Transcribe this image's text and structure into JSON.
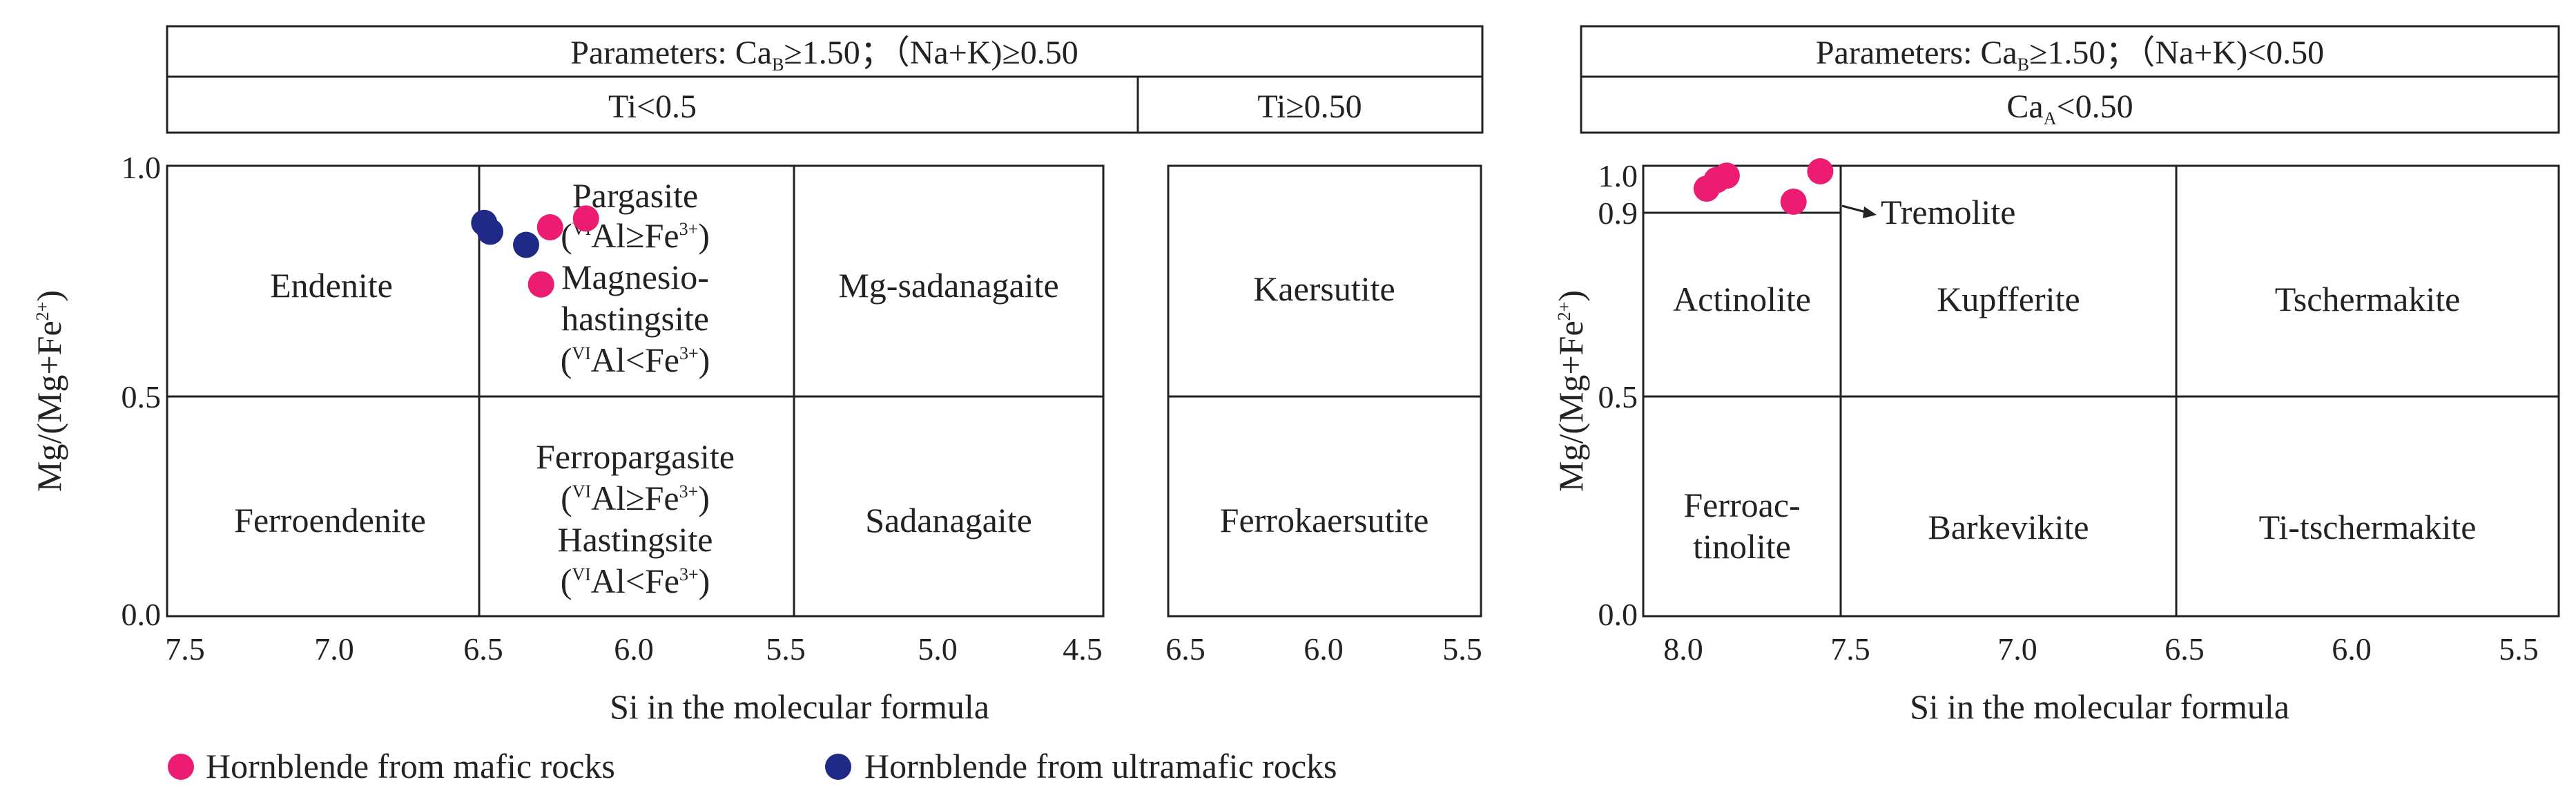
{
  "colors": {
    "mafic": "#ec1c73",
    "ultramafic": "#1e2a86",
    "line": "#222222"
  },
  "left": {
    "header": {
      "row1": {
        "prefix": "Parameters: Ca",
        "sub": "B",
        "rest": "≥1.50；（Na+K)≥0.50"
      },
      "row2_left": "Ti<0.5",
      "row2_right": "Ti≥0.50"
    },
    "ylabel": {
      "main": "Mg/(Mg+Fe",
      "sup": "2+",
      "close": ")"
    },
    "xlabel": "Si in the molecular formula",
    "y_ticks": [
      "1.0",
      "0.5",
      "0.0"
    ],
    "x_ticks_main": [
      "7.5",
      "7.0",
      "6.5",
      "6.0",
      "5.5",
      "5.0",
      "4.5"
    ],
    "x_ticks_right": [
      "6.5",
      "6.0",
      "5.5"
    ],
    "fields": {
      "endenite": "Endenite",
      "ferroendenite": "Ferroendenite",
      "pargasite": "Pargasite",
      "pargasite_cond": {
        "open": "(",
        "sup1": "VI",
        "mid": "Al≥Fe",
        "sup2": "3+",
        "close": ")"
      },
      "magnesio1": "Magnesio-",
      "magnesio2": "hastingsite",
      "magnesio_cond": {
        "open": "(",
        "sup1": "VI",
        "mid": "Al<Fe",
        "sup2": "3+",
        "close": ")"
      },
      "ferropargasite": "Ferropargasite",
      "ferropargasite_cond": {
        "open": "(",
        "sup1": "VI",
        "mid": "Al≥Fe",
        "sup2": "3+",
        "close": ")"
      },
      "hastingsite": "Hastingsite",
      "hastingsite_cond": {
        "open": "(",
        "sup1": "VI",
        "mid": "Al<Fe",
        "sup2": "3+",
        "close": ")"
      },
      "mg_sadanagaite": "Mg-sadanagaite",
      "sadanagaite": "Sadanagaite",
      "kaersutite": "Kaersutite",
      "ferrokaersutite": "Ferrokaersutite"
    }
  },
  "right": {
    "header": {
      "row1": {
        "prefix": "Parameters: Ca",
        "sub": "B",
        "rest": "≥1.50；（Na+K)<0.50"
      },
      "row2": {
        "prefix": "Ca",
        "sub": "A",
        "rest": "<0.50"
      }
    },
    "ylabel": {
      "main": "Mg/(Mg+Fe",
      "sup": "2+",
      "close": ")"
    },
    "xlabel": "Si in the molecular formula",
    "y_ticks": [
      "1.0",
      "0.9",
      "0.5",
      "0.0"
    ],
    "x_ticks": [
      "8.0",
      "7.5",
      "7.0",
      "6.5",
      "6.0",
      "5.5"
    ],
    "fields": {
      "tremolite": "Tremolite",
      "actinolite": "Actinolite",
      "kupfferite": "Kupfferite",
      "tschermakite": "Tschermakite",
      "ferroactinolite1": "Ferroac-",
      "ferroactinolite2": "tinolite",
      "barkevikite": "Barkevikite",
      "ti_tschermakite": "Ti-tschermakite"
    }
  },
  "legend": {
    "mafic": "Hornblende from mafic rocks",
    "ultramafic": "Hornblende from ultramafic rocks"
  },
  "chart_data": [
    {
      "type": "scatter",
      "xlabel": "Si in the molecular formula",
      "ylabel": "Mg/(Mg+Fe2+)",
      "xlim": [
        7.5,
        4.5
      ],
      "ylim": [
        0.0,
        1.0
      ],
      "x_reversed": true,
      "series": [
        {
          "name": "Hornblende from mafic rocks",
          "color": "#ec1c73",
          "points": [
            [
              6.16,
              0.88
            ],
            [
              6.28,
              0.86
            ],
            [
              6.31,
              0.73
            ]
          ]
        },
        {
          "name": "Hornblende from ultramafic rocks",
          "color": "#1e2a86",
          "points": [
            [
              6.5,
              0.87
            ],
            [
              6.48,
              0.85
            ],
            [
              6.36,
              0.82
            ]
          ]
        }
      ]
    },
    {
      "type": "scatter",
      "xlabel": "Si in the molecular formula",
      "ylabel": "Mg/(Mg+Fe2+)",
      "xlim": [
        8.0,
        5.5
      ],
      "ylim": [
        0.0,
        1.0
      ],
      "x_reversed": true,
      "series": [
        {
          "name": "Hornblende from mafic rocks",
          "color": "#ec1c73",
          "points": [
            [
              7.93,
              0.96
            ],
            [
              7.9,
              0.98
            ],
            [
              7.87,
              0.99
            ],
            [
              7.67,
              0.93
            ],
            [
              7.59,
              1.0
            ]
          ]
        }
      ]
    }
  ]
}
